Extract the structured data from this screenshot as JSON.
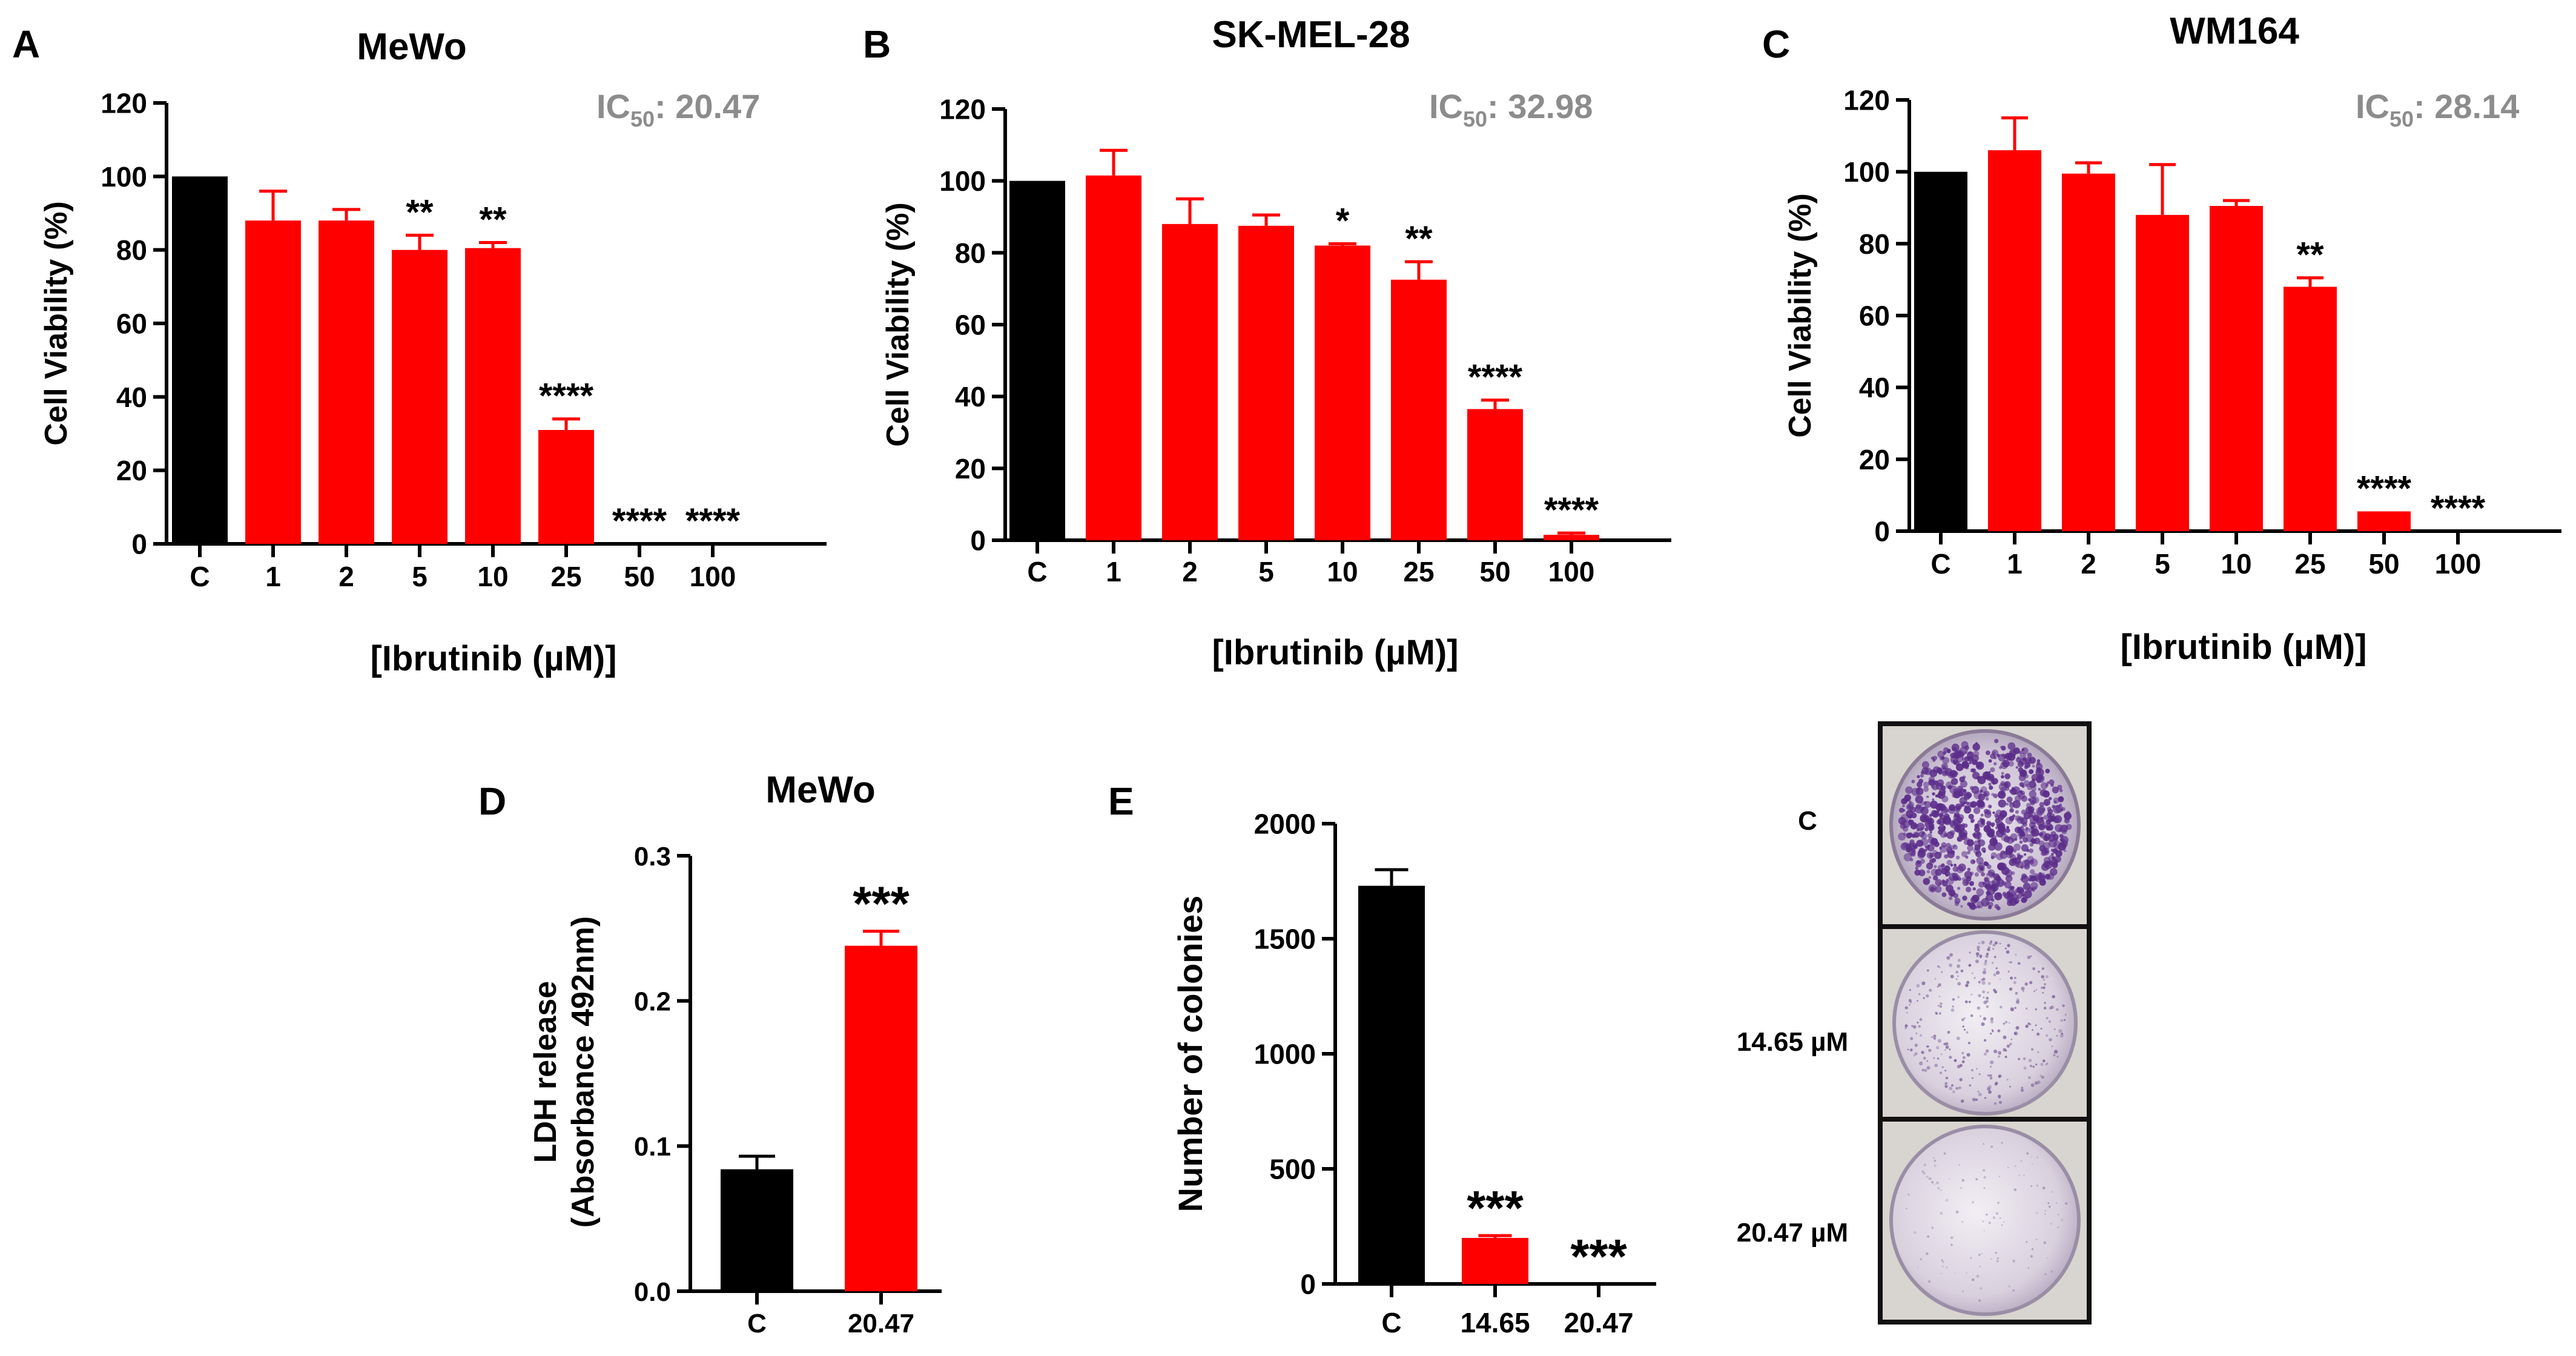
{
  "colors": {
    "control": "#000000",
    "treated": "#ff0000",
    "ic50_text": "#8c8c8c",
    "axis": "#000000",
    "dish_border": "#111111"
  },
  "chart_data": [
    {
      "panel": "A",
      "type": "bar",
      "title": "MeWo",
      "ic50_label": "IC",
      "ic50_sub": "50",
      "ic50_value": ": 20.47",
      "xlabel": "[Ibrutinib (µM)]",
      "ylabel": "Cell Viability (%)",
      "ylim": [
        0,
        120
      ],
      "yticks": [
        0,
        20,
        40,
        60,
        80,
        100,
        120
      ],
      "ytick_labels": [
        "0",
        "20",
        "40",
        "60",
        "80",
        "100",
        "120"
      ],
      "categories": [
        "C",
        "1",
        "2",
        "5",
        "10",
        "25",
        "50",
        "100"
      ],
      "values": [
        100,
        88,
        88,
        80,
        80.5,
        31,
        0,
        0
      ],
      "errors": [
        0,
        8,
        3,
        4,
        1.5,
        3,
        0,
        0
      ],
      "significance": [
        "",
        "",
        "",
        "**",
        "**",
        "****",
        "****",
        "****"
      ],
      "bar_colors": [
        "control",
        "treated",
        "treated",
        "treated",
        "treated",
        "treated",
        "treated",
        "treated"
      ]
    },
    {
      "panel": "B",
      "type": "bar",
      "title": "SK-MEL-28",
      "ic50_label": "IC",
      "ic50_sub": "50",
      "ic50_value": ": 32.98",
      "xlabel": "[Ibrutinib (µM)]",
      "ylabel": "Cell Viability (%)",
      "ylim": [
        0,
        120
      ],
      "yticks": [
        0,
        20,
        40,
        60,
        80,
        100,
        120
      ],
      "ytick_labels": [
        "0",
        "20",
        "40",
        "60",
        "80",
        "100",
        "120"
      ],
      "categories": [
        "C",
        "1",
        "2",
        "5",
        "10",
        "25",
        "50",
        "100"
      ],
      "values": [
        100,
        101.5,
        88,
        87.5,
        82,
        72.5,
        36.5,
        1.5
      ],
      "errors": [
        0,
        7,
        7,
        3,
        0.5,
        5,
        2.5,
        0.5
      ],
      "significance": [
        "",
        "",
        "",
        "",
        "*",
        "**",
        "****",
        "****"
      ],
      "bar_colors": [
        "control",
        "treated",
        "treated",
        "treated",
        "treated",
        "treated",
        "treated",
        "treated"
      ]
    },
    {
      "panel": "C",
      "type": "bar",
      "title": "WM164",
      "ic50_label": "IC",
      "ic50_sub": "50",
      "ic50_value": ": 28.14",
      "xlabel": "[Ibrutinib (µM)]",
      "ylabel": "Cell Viability (%)",
      "ylim": [
        0,
        120
      ],
      "yticks": [
        0,
        20,
        40,
        60,
        80,
        100,
        120
      ],
      "ytick_labels": [
        "0",
        "20",
        "40",
        "60",
        "80",
        "100",
        "120"
      ],
      "categories": [
        "C",
        "1",
        "2",
        "5",
        "10",
        "25",
        "50",
        "100"
      ],
      "values": [
        100,
        106,
        99.5,
        88,
        90.5,
        68,
        5.5,
        0
      ],
      "errors": [
        0,
        9,
        3,
        14,
        1.5,
        2.5,
        0,
        0
      ],
      "significance": [
        "",
        "",
        "",
        "",
        "",
        "**",
        "****",
        "****"
      ],
      "bar_colors": [
        "control",
        "treated",
        "treated",
        "treated",
        "treated",
        "treated",
        "treated",
        "treated"
      ]
    },
    {
      "panel": "D",
      "type": "bar",
      "title": "MeWo",
      "xlabel": "",
      "ylabel": "LDH release",
      "ylabel2": "(Absorbance 492nm)",
      "ylim": [
        0,
        0.3
      ],
      "yticks": [
        0,
        0.1,
        0.2,
        0.3
      ],
      "ytick_labels": [
        "0.0",
        "0.1",
        "0.2",
        "0.3"
      ],
      "categories": [
        "C",
        "20.47"
      ],
      "values": [
        0.084,
        0.238
      ],
      "errors": [
        0.009,
        0.01
      ],
      "significance": [
        "",
        "***"
      ],
      "bar_colors": [
        "control",
        "treated"
      ]
    },
    {
      "panel": "E",
      "type": "bar",
      "title": "",
      "xlabel": "",
      "ylabel": "Number of colonies",
      "ylim": [
        0,
        2000
      ],
      "yticks": [
        0,
        500,
        1000,
        1500,
        2000
      ],
      "ytick_labels": [
        "0",
        "500",
        "1000",
        "1500",
        "2000"
      ],
      "categories": [
        "C",
        "14.65",
        "20.47"
      ],
      "values": [
        1730,
        200,
        0
      ],
      "errors": [
        70,
        10,
        0
      ],
      "significance": [
        "",
        "***",
        "***"
      ],
      "bar_colors": [
        "control",
        "treated",
        "treated"
      ]
    }
  ],
  "colony_images": {
    "rows": [
      {
        "label": "C",
        "density": "high"
      },
      {
        "label": "14.65 µM",
        "density": "medium"
      },
      {
        "label": "20.47 µM",
        "density": "low"
      }
    ]
  }
}
